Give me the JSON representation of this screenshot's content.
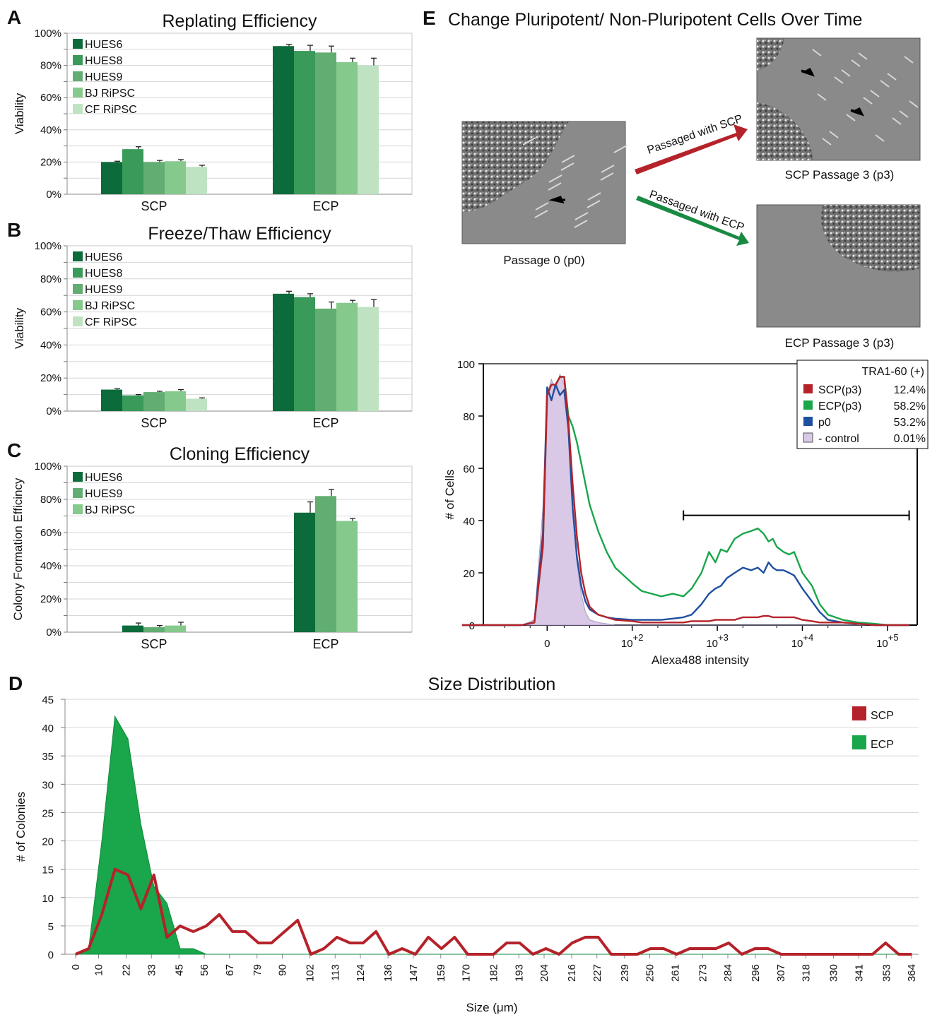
{
  "panel_labels": {
    "A": "A",
    "B": "B",
    "C": "C",
    "D": "D",
    "E": "E"
  },
  "colors": {
    "hues6": "#0b6b3a",
    "hues8": "#3a9a59",
    "hues9": "#62ad72",
    "bj": "#86c98c",
    "cf": "#bfe3c2",
    "scp_red": "#b5222a",
    "ecp_green": "#1aa64a",
    "p0_blue": "#1f4fa0",
    "control": "#d9c8e6"
  },
  "chart_data": [
    {
      "type": "bar",
      "title": "Replating Efficiency",
      "ylabel": "Viability",
      "categories": [
        "SCP",
        "ECP"
      ],
      "ylim": [
        0,
        100
      ],
      "yticks": [
        "0%",
        "20%",
        "40%",
        "60%",
        "80%",
        "100%"
      ],
      "series": [
        {
          "name": "HUES6",
          "values": [
            20,
            92
          ],
          "errors": [
            0.5,
            1
          ]
        },
        {
          "name": "HUES8",
          "values": [
            28,
            89
          ],
          "errors": [
            1.5,
            3.5
          ]
        },
        {
          "name": "HUES9",
          "values": [
            20,
            88
          ],
          "errors": [
            1,
            4
          ]
        },
        {
          "name": "BJ RiPSC",
          "values": [
            20.5,
            82
          ],
          "errors": [
            1,
            2.5
          ]
        },
        {
          "name": "CF RiPSC",
          "values": [
            17,
            80
          ],
          "errors": [
            1,
            4.5
          ]
        }
      ]
    },
    {
      "type": "bar",
      "title": "Freeze/Thaw Efficiency",
      "ylabel": "Viability",
      "categories": [
        "SCP",
        "ECP"
      ],
      "ylim": [
        0,
        100
      ],
      "yticks": [
        "0%",
        "20%",
        "40%",
        "60%",
        "80%",
        "100%"
      ],
      "series": [
        {
          "name": "HUES6",
          "values": [
            13,
            71
          ],
          "errors": [
            0.5,
            1.5
          ]
        },
        {
          "name": "HUES8",
          "values": [
            9.5,
            69
          ],
          "errors": [
            0.5,
            2
          ]
        },
        {
          "name": "HUES9",
          "values": [
            11.5,
            62
          ],
          "errors": [
            0.5,
            4
          ]
        },
        {
          "name": "BJ RiPSC",
          "values": [
            12,
            65.5
          ],
          "errors": [
            1,
            1.5
          ]
        },
        {
          "name": "CF RiPSC",
          "values": [
            7.5,
            63
          ],
          "errors": [
            0.5,
            4.5
          ]
        }
      ]
    },
    {
      "type": "bar",
      "title": "Cloning Efficiency",
      "ylabel": "Colony Formation Efficincy",
      "categories": [
        "SCP",
        "ECP"
      ],
      "ylim": [
        0,
        100
      ],
      "yticks": [
        "0%",
        "20%",
        "40%",
        "60%",
        "80%",
        "100%"
      ],
      "series": [
        {
          "name": "HUES6",
          "values": [
            4,
            72
          ],
          "errors": [
            1.5,
            6.5
          ]
        },
        {
          "name": "HUES9",
          "values": [
            3,
            82
          ],
          "errors": [
            1,
            4
          ]
        },
        {
          "name": "BJ RiPSC",
          "values": [
            4,
            67
          ],
          "errors": [
            2,
            1.5
          ]
        }
      ]
    },
    {
      "type": "area",
      "title": "Size Distribution",
      "xlabel": "Size (μm)",
      "ylabel": "# of Colonies",
      "ylim": [
        0,
        45
      ],
      "yticks": [
        0,
        5,
        10,
        15,
        20,
        25,
        30,
        35,
        40,
        45
      ],
      "x": [
        0,
        5.7,
        11.4,
        17.1,
        22.8,
        28.4,
        34.1,
        39.8,
        45.5,
        51.2,
        56.9,
        62.6,
        68.3,
        74.0,
        79.6,
        85.3,
        91.0,
        96.7,
        102.4,
        108.1,
        113.8,
        119.5,
        125.2,
        130.8,
        136.5,
        142.2,
        147.9,
        153.6,
        159.3,
        165.0,
        170.7,
        176.4,
        182.0,
        187.7,
        193.4,
        199.1,
        204.8,
        210.5,
        216.2,
        221.9,
        227.6,
        233.2,
        238.9,
        244.6,
        250.3,
        256.0,
        261.7,
        267.4,
        273.1,
        278.8,
        284.4,
        290.1,
        295.8,
        301.5,
        307.2,
        312.9,
        318.6,
        324.3,
        330.0,
        335.6,
        341.3,
        347.0,
        352.7,
        358.4,
        364.1
      ],
      "xticks": [
        0,
        10,
        22,
        33,
        45,
        56,
        67,
        79,
        90,
        102,
        113,
        124,
        136,
        147,
        159,
        170,
        182,
        193,
        204,
        216,
        227,
        239,
        250,
        261,
        273,
        284,
        296,
        307,
        318,
        330,
        341,
        353,
        364
      ],
      "series": [
        {
          "name": "SCP",
          "kind": "line",
          "values": [
            0,
            1,
            7,
            15,
            14,
            8,
            14,
            3,
            5,
            4,
            5,
            7,
            4,
            4,
            2,
            2,
            4,
            6,
            0,
            1,
            3,
            2,
            2,
            4,
            0,
            1,
            0,
            3,
            1,
            3,
            0,
            0,
            0,
            2,
            2,
            0,
            1,
            0,
            2,
            3,
            3,
            0,
            0,
            0,
            1,
            1,
            0,
            1,
            1,
            1,
            2,
            0,
            1,
            1,
            0,
            0,
            0,
            0,
            0,
            0,
            0,
            0,
            2,
            0,
            0
          ]
        },
        {
          "name": "ECP",
          "kind": "area",
          "values": [
            0,
            1,
            20,
            42,
            38,
            23,
            12,
            9,
            1,
            1,
            0,
            0,
            0,
            0,
            0,
            0,
            0,
            0,
            0,
            0,
            0,
            0,
            0,
            0,
            0,
            0,
            0,
            0,
            0,
            0,
            0,
            0,
            0,
            0,
            0,
            0,
            0,
            0,
            0,
            0,
            0,
            0,
            0,
            0,
            0,
            0,
            0,
            0,
            0,
            0,
            0,
            0,
            0,
            0,
            0,
            0,
            0,
            0,
            0,
            0,
            0,
            0,
            0,
            0,
            0
          ]
        }
      ]
    },
    {
      "type": "line",
      "title": "",
      "xlabel": "Alexa488 intensity",
      "ylabel": "# of Cells",
      "ylim": [
        0,
        100
      ],
      "yticks": [
        0,
        20,
        40,
        60,
        80,
        100
      ],
      "xticks": [
        {
          "value": 0,
          "base": "0",
          "exp": ""
        },
        {
          "value": 100,
          "base": "10",
          "exp": "+2"
        },
        {
          "value": 1000,
          "base": "10",
          "exp": "+3"
        },
        {
          "value": 10000,
          "base": "10",
          "exp": "+4"
        },
        {
          "value": 100000,
          "base": "10",
          "exp": "+5"
        }
      ],
      "legend_title": "TRA1-60 (+)",
      "gate_range": [
        400,
        180000
      ],
      "x": [
        -100,
        -30,
        -15,
        -5,
        0,
        5,
        10,
        15,
        20,
        25,
        30,
        35,
        40,
        45,
        50,
        60,
        70,
        80,
        100,
        130,
        170,
        220,
        300,
        400,
        500,
        650,
        800,
        950,
        1100,
        1300,
        1600,
        2000,
        2500,
        3000,
        3500,
        4000,
        4500,
        5000,
        6000,
        7000,
        8000,
        10000,
        13000,
        16000,
        20000,
        30000,
        45000,
        70000,
        100000,
        180000
      ],
      "series": [
        {
          "name": "SCP(p3)",
          "pct": "12.4%",
          "values": [
            0,
            0,
            1,
            30,
            88,
            92,
            92,
            95,
            95,
            78,
            54,
            34,
            20,
            12,
            7,
            4,
            3,
            2,
            1.5,
            1,
            1,
            1,
            1,
            1,
            1.5,
            1.5,
            1.5,
            2,
            2,
            2,
            2,
            3,
            3,
            3,
            3.5,
            3.5,
            3,
            3,
            3,
            3,
            3,
            2,
            1.5,
            1,
            1,
            1,
            0.5,
            0,
            0,
            0
          ]
        },
        {
          "name": "ECP(p3)",
          "pct": "58.2%",
          "values": [
            0,
            0,
            1,
            30,
            88,
            92,
            92,
            95,
            95,
            80,
            76,
            70,
            62,
            54,
            46,
            36,
            28,
            22,
            16,
            13,
            12,
            11,
            12,
            11,
            14,
            20,
            28,
            24,
            29,
            28,
            33,
            35,
            36,
            37,
            35,
            32,
            33,
            30,
            28,
            27,
            28,
            20,
            15,
            8,
            4,
            2,
            1,
            0.5,
            0,
            0
          ]
        },
        {
          "name": "p0",
          "pct": "53.2%",
          "values": [
            0,
            0,
            1,
            35,
            91,
            86,
            92,
            88,
            90,
            75,
            45,
            26,
            15,
            9,
            6,
            4,
            3,
            2.5,
            2,
            2,
            2,
            2,
            2.5,
            3,
            4,
            8,
            12,
            14,
            15,
            18,
            20,
            22,
            21,
            22,
            20,
            24,
            22,
            21,
            21,
            20,
            19,
            14,
            9,
            5,
            2,
            1,
            0.5,
            0,
            0,
            0
          ]
        },
        {
          "name": "- control",
          "pct": "0.01%",
          "values": [
            0,
            0,
            2,
            45,
            88,
            94,
            90,
            96,
            92,
            75,
            45,
            24,
            12,
            5,
            2,
            1,
            0.5,
            0,
            0,
            0,
            0,
            0,
            0,
            0,
            0,
            0,
            0,
            0,
            0,
            0,
            0,
            0,
            0,
            0,
            0,
            0,
            0,
            0,
            0,
            0,
            0,
            0,
            0,
            0,
            0,
            0,
            0,
            0,
            0,
            0
          ]
        }
      ]
    }
  ],
  "panel_e": {
    "title": "Change Pluripotent/ Non-Pluripotent Cells Over Time",
    "p0_caption": "Passage 0 (p0)",
    "scp_caption": "SCP Passage 3 (p3)",
    "ecp_caption": "ECP Passage 3 (p3)",
    "scp_arrow_label": "Passaged with SCP",
    "ecp_arrow_label": "Passaged with ECP"
  }
}
